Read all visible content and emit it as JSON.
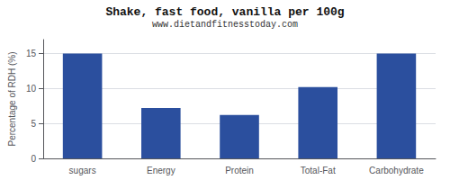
{
  "chart_data": {
    "type": "bar",
    "title": "Shake, fast food, vanilla per 100g",
    "subtitle": "www.dietandfitnesstoday.com",
    "categories": [
      "sugars",
      "Energy",
      "Protein",
      "Total-Fat",
      "Carbohydrate"
    ],
    "values": [
      15,
      7.2,
      6.2,
      10.2,
      15
    ],
    "color": "#2b4f9e",
    "ylabel": "Percentage of RDH (%)",
    "ylim": [
      0,
      17
    ],
    "yticks": [
      0,
      5,
      10,
      15
    ],
    "grid": true
  }
}
